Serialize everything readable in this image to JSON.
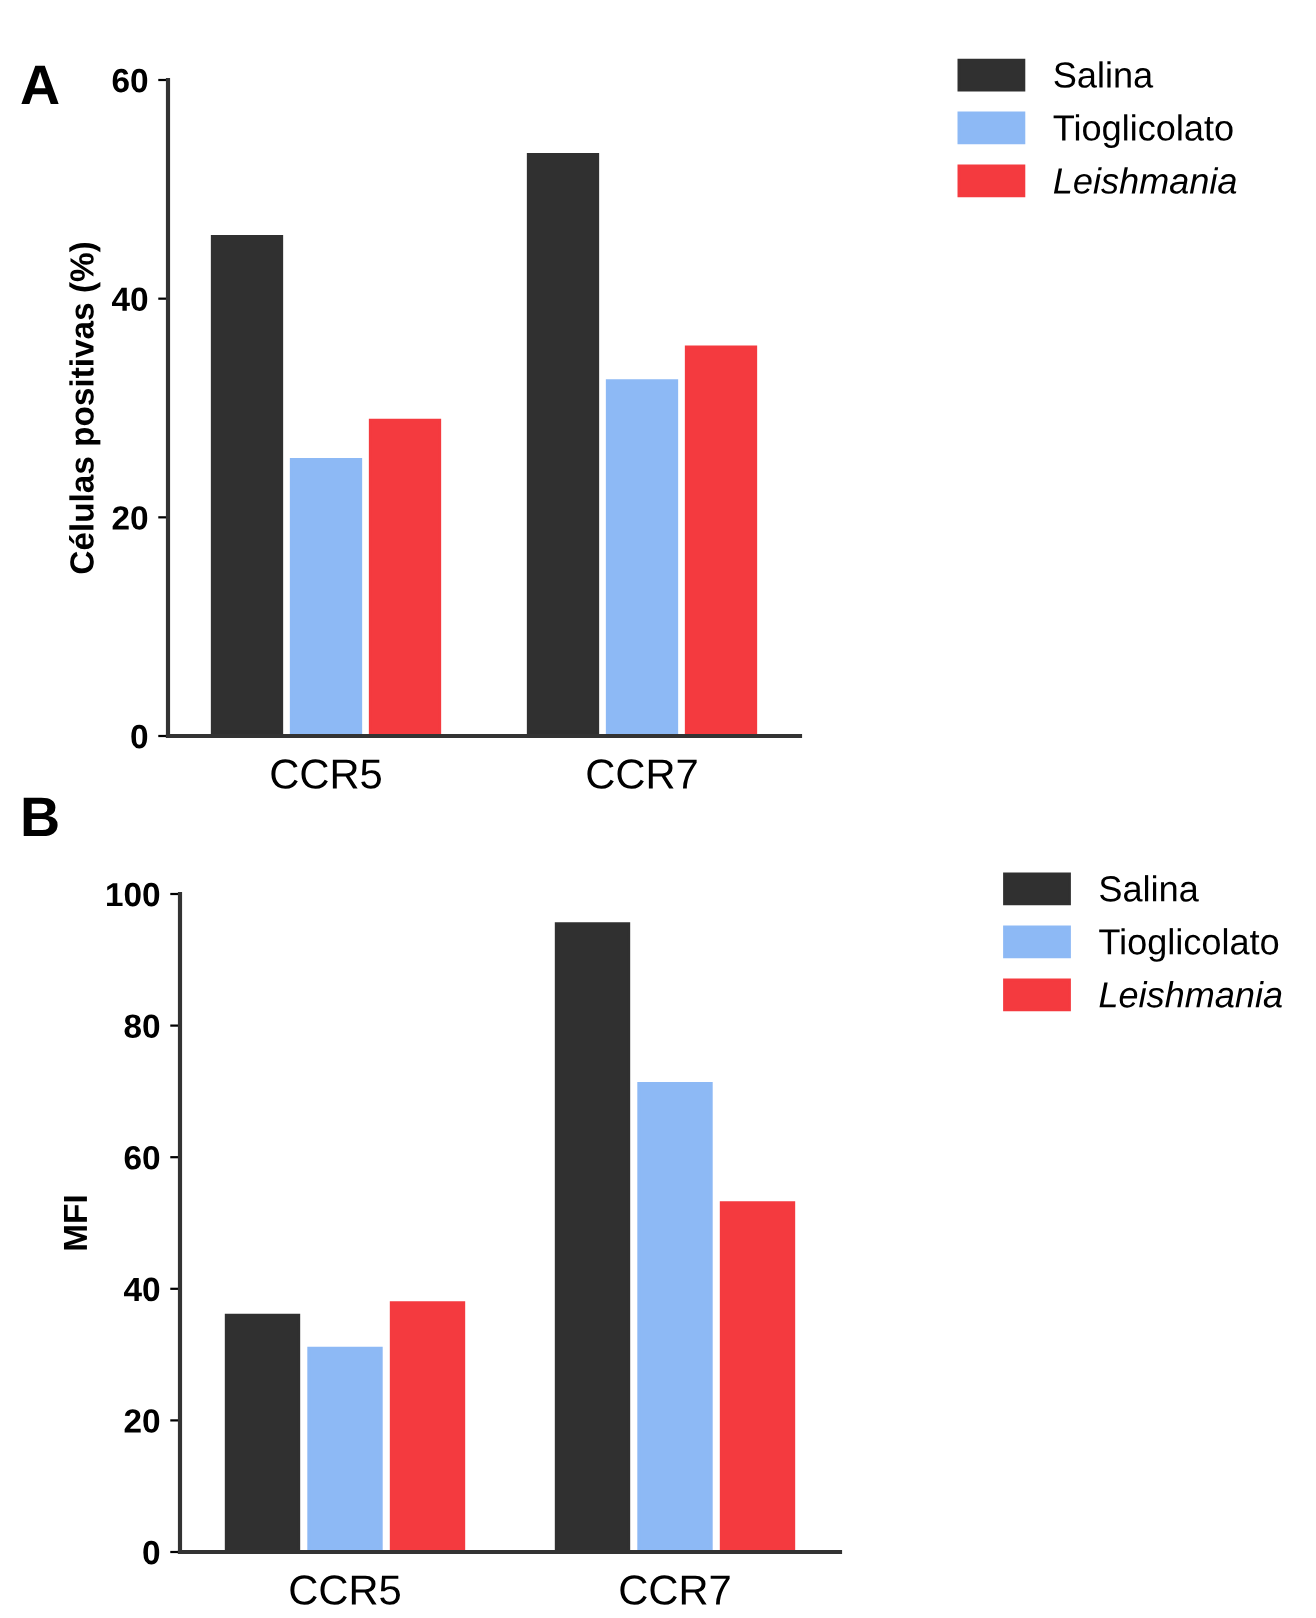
{
  "chart_data": [
    {
      "type": "bar",
      "ylabel": "Células positivas (%)",
      "annotations": [
        "A"
      ],
      "categories": [
        "CCR5",
        "CCR7"
      ],
      "ylim": [
        0,
        60
      ],
      "yticks": [
        0,
        20,
        40,
        60
      ],
      "grid": false,
      "legend": "top right",
      "series": [
        {
          "name": "Salina",
          "color": "#303030",
          "values": [
            45.7,
            53.2
          ]
        },
        {
          "name": "Tioglicolato",
          "color": "#8db9f5",
          "values": [
            25.3,
            32.5
          ]
        },
        {
          "name": "Leishmania",
          "color": "#f43a3f",
          "values": [
            28.9,
            35.6
          ]
        }
      ]
    },
    {
      "type": "bar",
      "ylabel": "MFI",
      "annotations": [
        "B"
      ],
      "categories": [
        "CCR5",
        "CCR7"
      ],
      "ylim": [
        0,
        100
      ],
      "yticks": [
        0,
        20,
        40,
        60,
        80,
        100
      ],
      "grid": false,
      "legend": "top right",
      "series": [
        {
          "name": "Salina",
          "color": "#303030",
          "values": [
            36.0,
            95.5
          ]
        },
        {
          "name": "Tioglicolato",
          "color": "#8db9f5",
          "values": [
            31.0,
            71.2
          ]
        },
        {
          "name": "Leishmania",
          "color": "#f43a3f",
          "values": [
            37.9,
            53.1
          ]
        }
      ]
    }
  ]
}
